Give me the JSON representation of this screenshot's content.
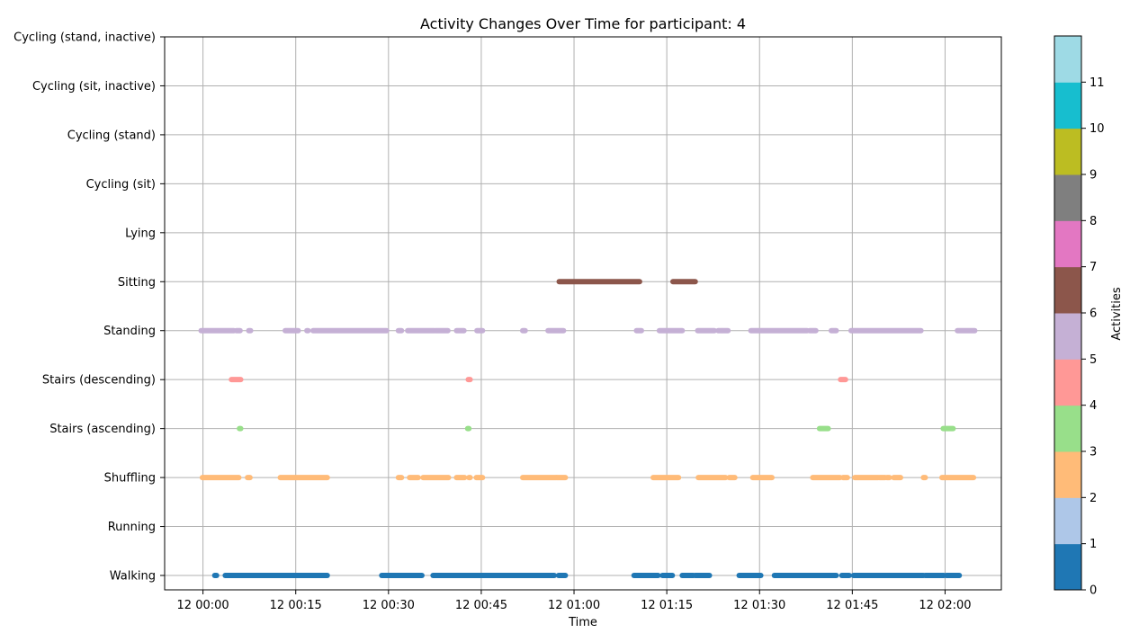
{
  "chart_data": {
    "type": "scatter",
    "title": "Activity Changes Over Time for participant: 4",
    "xlabel": "Time",
    "ylabel": "",
    "x_ticks": [
      "12 00:00",
      "12 00:15",
      "12 00:30",
      "12 00:45",
      "12 01:00",
      "12 01:15",
      "12 01:30",
      "12 01:45",
      "12 02:00"
    ],
    "x_tick_minutes": [
      0,
      15,
      30,
      45,
      60,
      75,
      90,
      105,
      120
    ],
    "xlim_minutes": [
      -6.2,
      129.1
    ],
    "categories": [
      "Walking",
      "Running",
      "Shuffling",
      "Stairs (ascending)",
      "Stairs (descending)",
      "Standing",
      "Sitting",
      "Lying",
      "Cycling (sit)",
      "Cycling (stand)",
      "Cycling (sit, inactive)",
      "Cycling (stand, inactive)"
    ],
    "grid": true,
    "colorbar": {
      "label": "Activities",
      "ticks": [
        "0",
        "1",
        "2",
        "3",
        "4",
        "5",
        "6",
        "7",
        "8",
        "9",
        "10",
        "11"
      ],
      "colors": [
        "#1f77b4",
        "#aec7e8",
        "#ffbb78",
        "#98df8a",
        "#ff9896",
        "#c5b0d5",
        "#8c564b",
        "#e377c2",
        "#7f7f7f",
        "#bcbd22",
        "#17becf",
        "#9edae5"
      ]
    },
    "series": [
      {
        "category": "Walking",
        "color": "#1f77b4",
        "segments": [
          [
            1.9,
            2.2
          ],
          [
            3.6,
            20.1
          ],
          [
            28.9,
            35.4
          ],
          [
            37.2,
            56.8
          ],
          [
            57.5,
            58.6
          ],
          [
            69.7,
            73.6
          ],
          [
            74.3,
            75.9
          ],
          [
            77.5,
            79.3
          ],
          [
            79.6,
            81.9
          ],
          [
            86.7,
            90.2
          ],
          [
            92.4,
            102.4
          ],
          [
            103.3,
            104.5
          ],
          [
            105.2,
            116.5
          ],
          [
            116.8,
            119.8
          ],
          [
            120.2,
            122.3
          ]
        ]
      },
      {
        "category": "Shuffling",
        "color": "#ffbb78",
        "segments": [
          [
            -0.1,
            5.8
          ],
          [
            7.2,
            7.6
          ],
          [
            12.5,
            20.1
          ],
          [
            31.6,
            32.1
          ],
          [
            33.4,
            34.8
          ],
          [
            35.6,
            39.7
          ],
          [
            41.0,
            42.3
          ],
          [
            43.0,
            43.2
          ],
          [
            44.2,
            45.2
          ],
          [
            51.7,
            57.1
          ],
          [
            57.2,
            58.6
          ],
          [
            72.8,
            76.9
          ],
          [
            80.1,
            84.5
          ],
          [
            85.1,
            86.0
          ],
          [
            88.9,
            92.0
          ],
          [
            98.6,
            103.0
          ],
          [
            103.5,
            104.2
          ],
          [
            105.4,
            109.2
          ],
          [
            109.4,
            110.3
          ],
          [
            110.6,
            111.0
          ],
          [
            111.7,
            112.8
          ],
          [
            116.5,
            116.8
          ],
          [
            119.5,
            124.6
          ]
        ]
      },
      {
        "category": "Stairs (ascending)",
        "color": "#98df8a",
        "segments": [
          [
            5.9,
            6.1
          ],
          [
            42.8,
            43.0
          ],
          [
            99.7,
            101.1
          ],
          [
            119.7,
            121.3
          ]
        ]
      },
      {
        "category": "Stairs (descending)",
        "color": "#ff9896",
        "segments": [
          [
            4.6,
            6.1
          ],
          [
            42.9,
            43.2
          ],
          [
            103.1,
            103.9
          ]
        ]
      },
      {
        "category": "Standing",
        "color": "#c5b0d5",
        "segments": [
          [
            -0.3,
            5.0
          ],
          [
            5.4,
            6.0
          ],
          [
            7.4,
            7.7
          ],
          [
            13.3,
            15.4
          ],
          [
            16.8,
            17.0
          ],
          [
            17.8,
            29.7
          ],
          [
            31.6,
            32.1
          ],
          [
            33.1,
            37.4
          ],
          [
            37.6,
            39.6
          ],
          [
            41.0,
            42.2
          ],
          [
            44.3,
            45.2
          ],
          [
            51.7,
            52.1
          ],
          [
            55.8,
            58.3
          ],
          [
            70.1,
            70.9
          ],
          [
            73.8,
            77.5
          ],
          [
            80.0,
            82.7
          ],
          [
            83.3,
            83.9
          ],
          [
            84.0,
            84.9
          ],
          [
            88.6,
            97.7
          ],
          [
            98.1,
            99.1
          ],
          [
            101.6,
            102.4
          ],
          [
            104.8,
            116.1
          ],
          [
            122.0,
            124.8
          ]
        ]
      },
      {
        "category": "Sitting",
        "color": "#8c564b",
        "segments": [
          [
            57.6,
            70.6
          ],
          [
            76.0,
            79.6
          ]
        ]
      }
    ]
  }
}
